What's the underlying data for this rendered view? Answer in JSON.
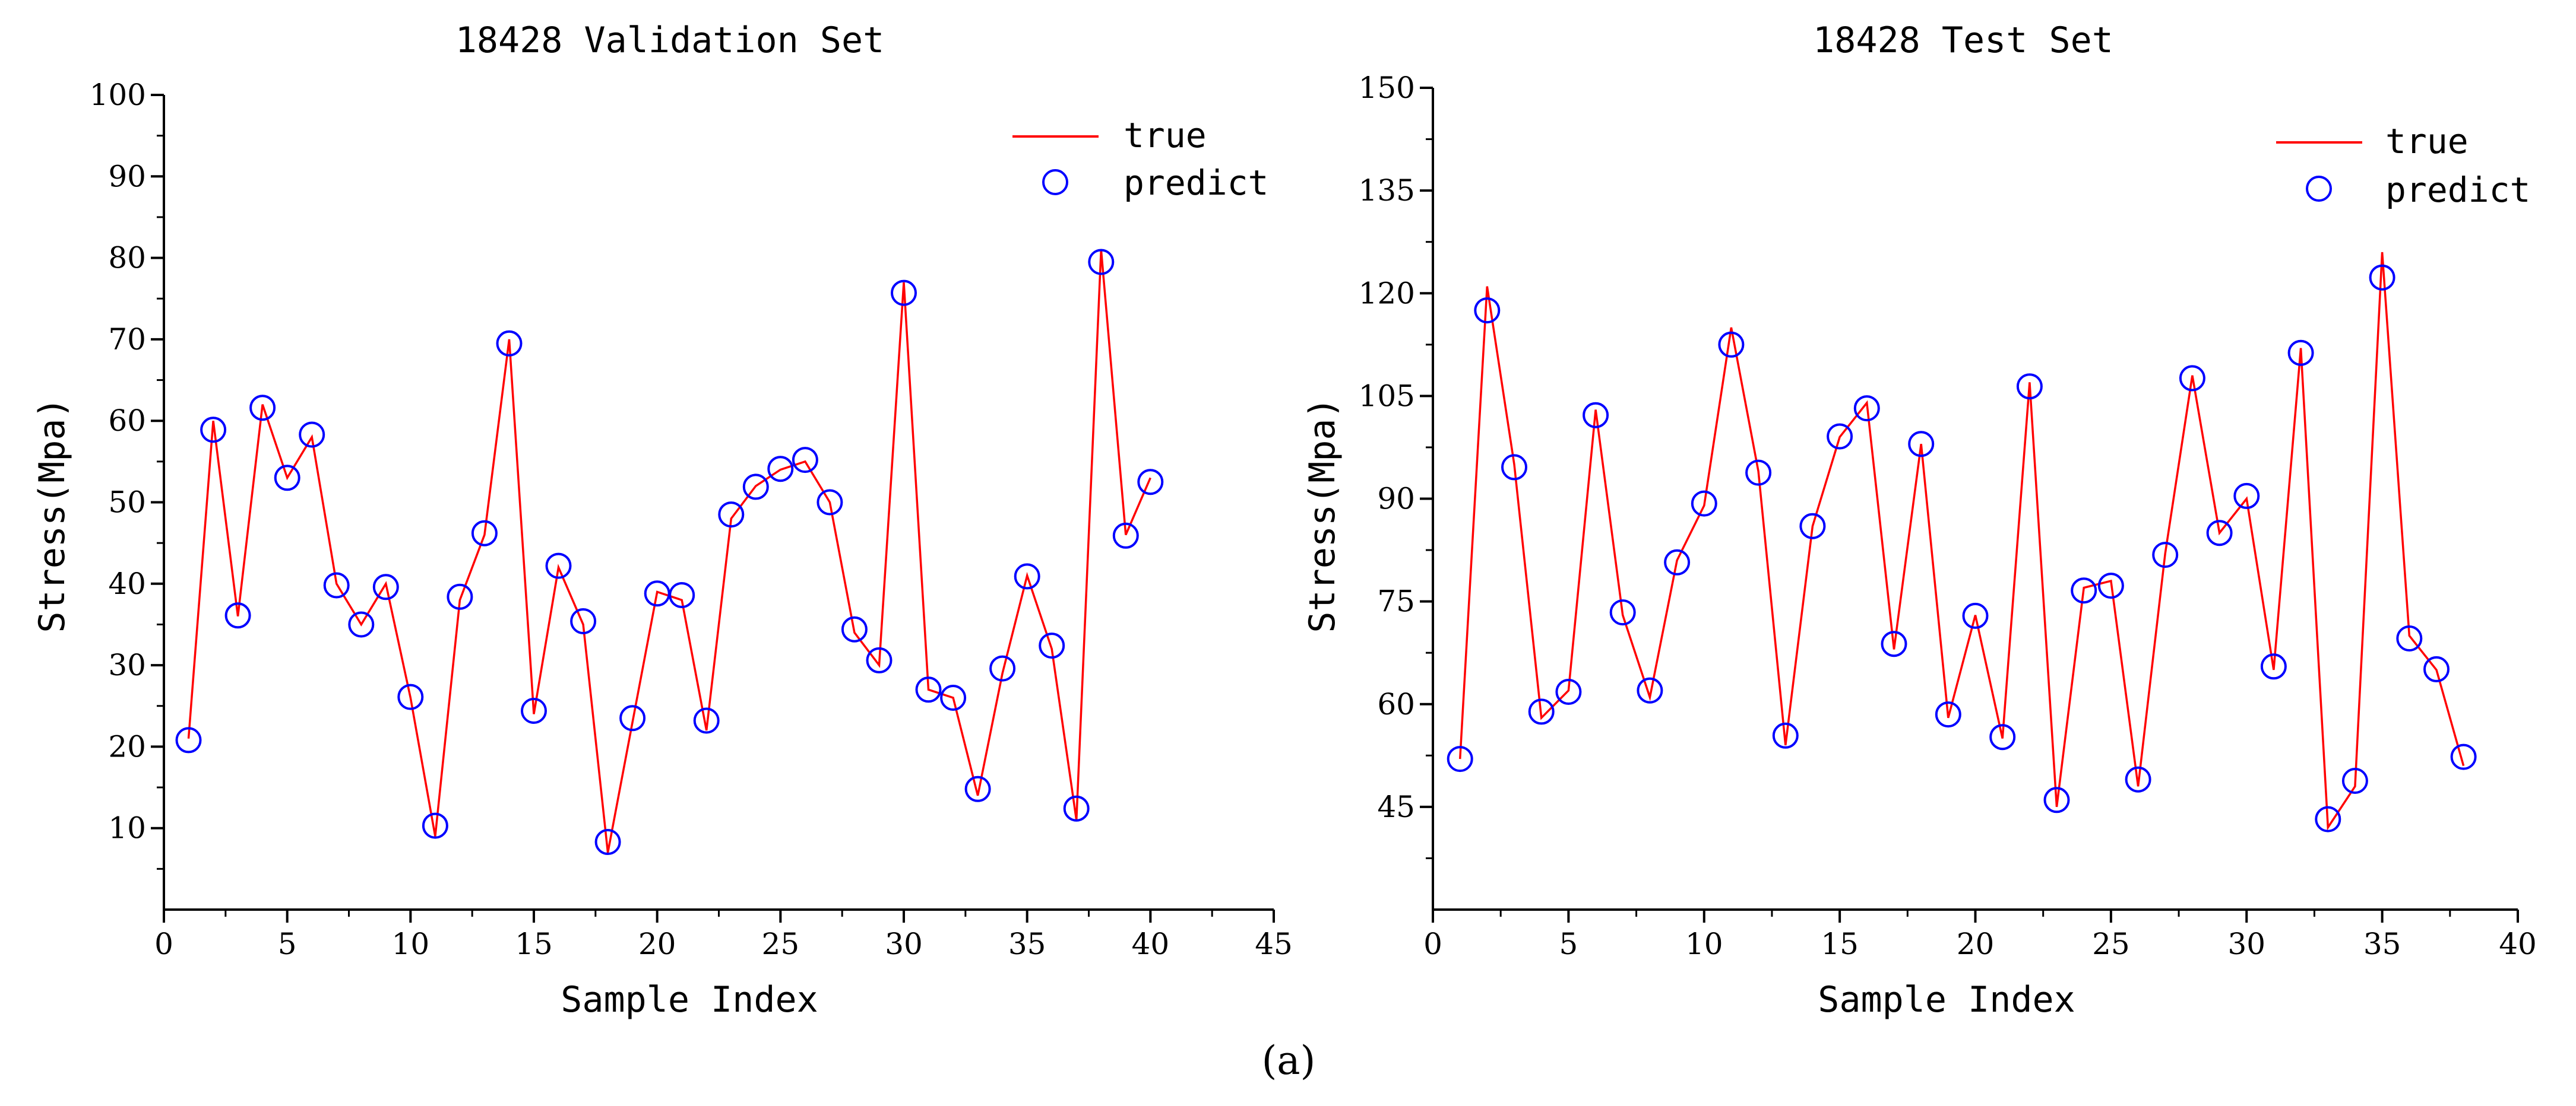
{
  "figure": {
    "caption": "(a)",
    "colors": {
      "true_line": "#ff0000",
      "predict_marker": "#0000ff",
      "axis": "#000000"
    }
  },
  "chart_data": [
    {
      "type": "line",
      "title": "18428 Validation Set",
      "xlabel": "Sample Index",
      "ylabel": "Stress(Mpa)",
      "xlim": [
        0,
        45
      ],
      "ylim": [
        0,
        100
      ],
      "xticks": [
        0,
        5,
        10,
        15,
        20,
        25,
        30,
        35,
        40,
        45
      ],
      "yticks": [
        10,
        20,
        30,
        40,
        50,
        60,
        70,
        80,
        90,
        100
      ],
      "grid": false,
      "legend": "top-right",
      "x": [
        1,
        2,
        3,
        4,
        5,
        6,
        7,
        8,
        9,
        10,
        11,
        12,
        13,
        14,
        15,
        16,
        17,
        18,
        19,
        20,
        21,
        22,
        23,
        24,
        25,
        26,
        27,
        28,
        29,
        30,
        31,
        32,
        33,
        34,
        35,
        36,
        37,
        38,
        39,
        40
      ],
      "series": [
        {
          "name": "true",
          "kind": "line",
          "values": [
            21,
            60,
            36,
            62,
            53,
            58,
            40,
            35,
            40,
            26,
            9,
            38,
            46,
            70,
            24,
            42,
            35,
            7,
            23,
            39,
            38,
            22,
            48,
            52,
            54,
            55,
            50,
            34,
            30,
            77,
            27,
            26,
            14,
            29,
            41,
            32,
            11,
            81,
            46,
            53
          ]
        },
        {
          "name": "predict",
          "kind": "marker",
          "values": [
            20.8,
            58.9,
            36.1,
            61.6,
            53.0,
            58.3,
            39.8,
            35.0,
            39.6,
            26.1,
            10.3,
            38.4,
            46.2,
            69.5,
            24.4,
            42.2,
            35.4,
            8.3,
            23.5,
            38.8,
            38.6,
            23.2,
            48.5,
            51.9,
            54.1,
            55.2,
            50.0,
            34.4,
            30.6,
            75.7,
            27.0,
            26.0,
            14.8,
            29.6,
            40.9,
            32.4,
            12.4,
            79.5,
            45.9,
            52.5
          ]
        }
      ]
    },
    {
      "type": "line",
      "title": "18428 Test Set",
      "xlabel": "Sample Index",
      "ylabel": "Stress(Mpa)",
      "xlim": [
        0,
        40
      ],
      "ylim": [
        30,
        150
      ],
      "xticks": [
        0,
        5,
        10,
        15,
        20,
        25,
        30,
        35,
        40
      ],
      "yticks": [
        45,
        60,
        75,
        90,
        105,
        120,
        135,
        150
      ],
      "grid": false,
      "legend": "top-right",
      "x": [
        1,
        2,
        3,
        4,
        5,
        6,
        7,
        8,
        9,
        10,
        11,
        12,
        13,
        14,
        15,
        16,
        17,
        18,
        19,
        20,
        21,
        22,
        23,
        24,
        25,
        26,
        27,
        28,
        29,
        30,
        31,
        32,
        33,
        34,
        35,
        36,
        37,
        38
      ],
      "series": [
        {
          "name": "true",
          "kind": "line",
          "values": [
            52,
            121,
            95,
            58,
            62,
            103,
            73,
            61,
            81,
            89,
            115,
            94,
            54,
            86,
            99,
            104,
            68,
            98,
            58,
            73,
            55,
            107,
            45,
            77,
            78,
            48,
            82,
            108,
            85,
            90,
            65,
            112,
            42,
            48,
            126,
            70,
            65,
            51
          ]
        },
        {
          "name": "predict",
          "kind": "marker",
          "values": [
            52.0,
            117.5,
            94.6,
            58.9,
            61.8,
            102.2,
            73.4,
            62.0,
            80.7,
            89.3,
            112.5,
            93.8,
            55.4,
            86.0,
            99.1,
            103.2,
            68.8,
            98.0,
            58.5,
            72.9,
            55.2,
            106.4,
            46.0,
            76.6,
            77.3,
            49.0,
            81.8,
            107.6,
            85.0,
            90.4,
            65.5,
            111.3,
            43.2,
            48.8,
            122.3,
            69.6,
            65.1,
            52.3
          ]
        }
      ]
    }
  ]
}
